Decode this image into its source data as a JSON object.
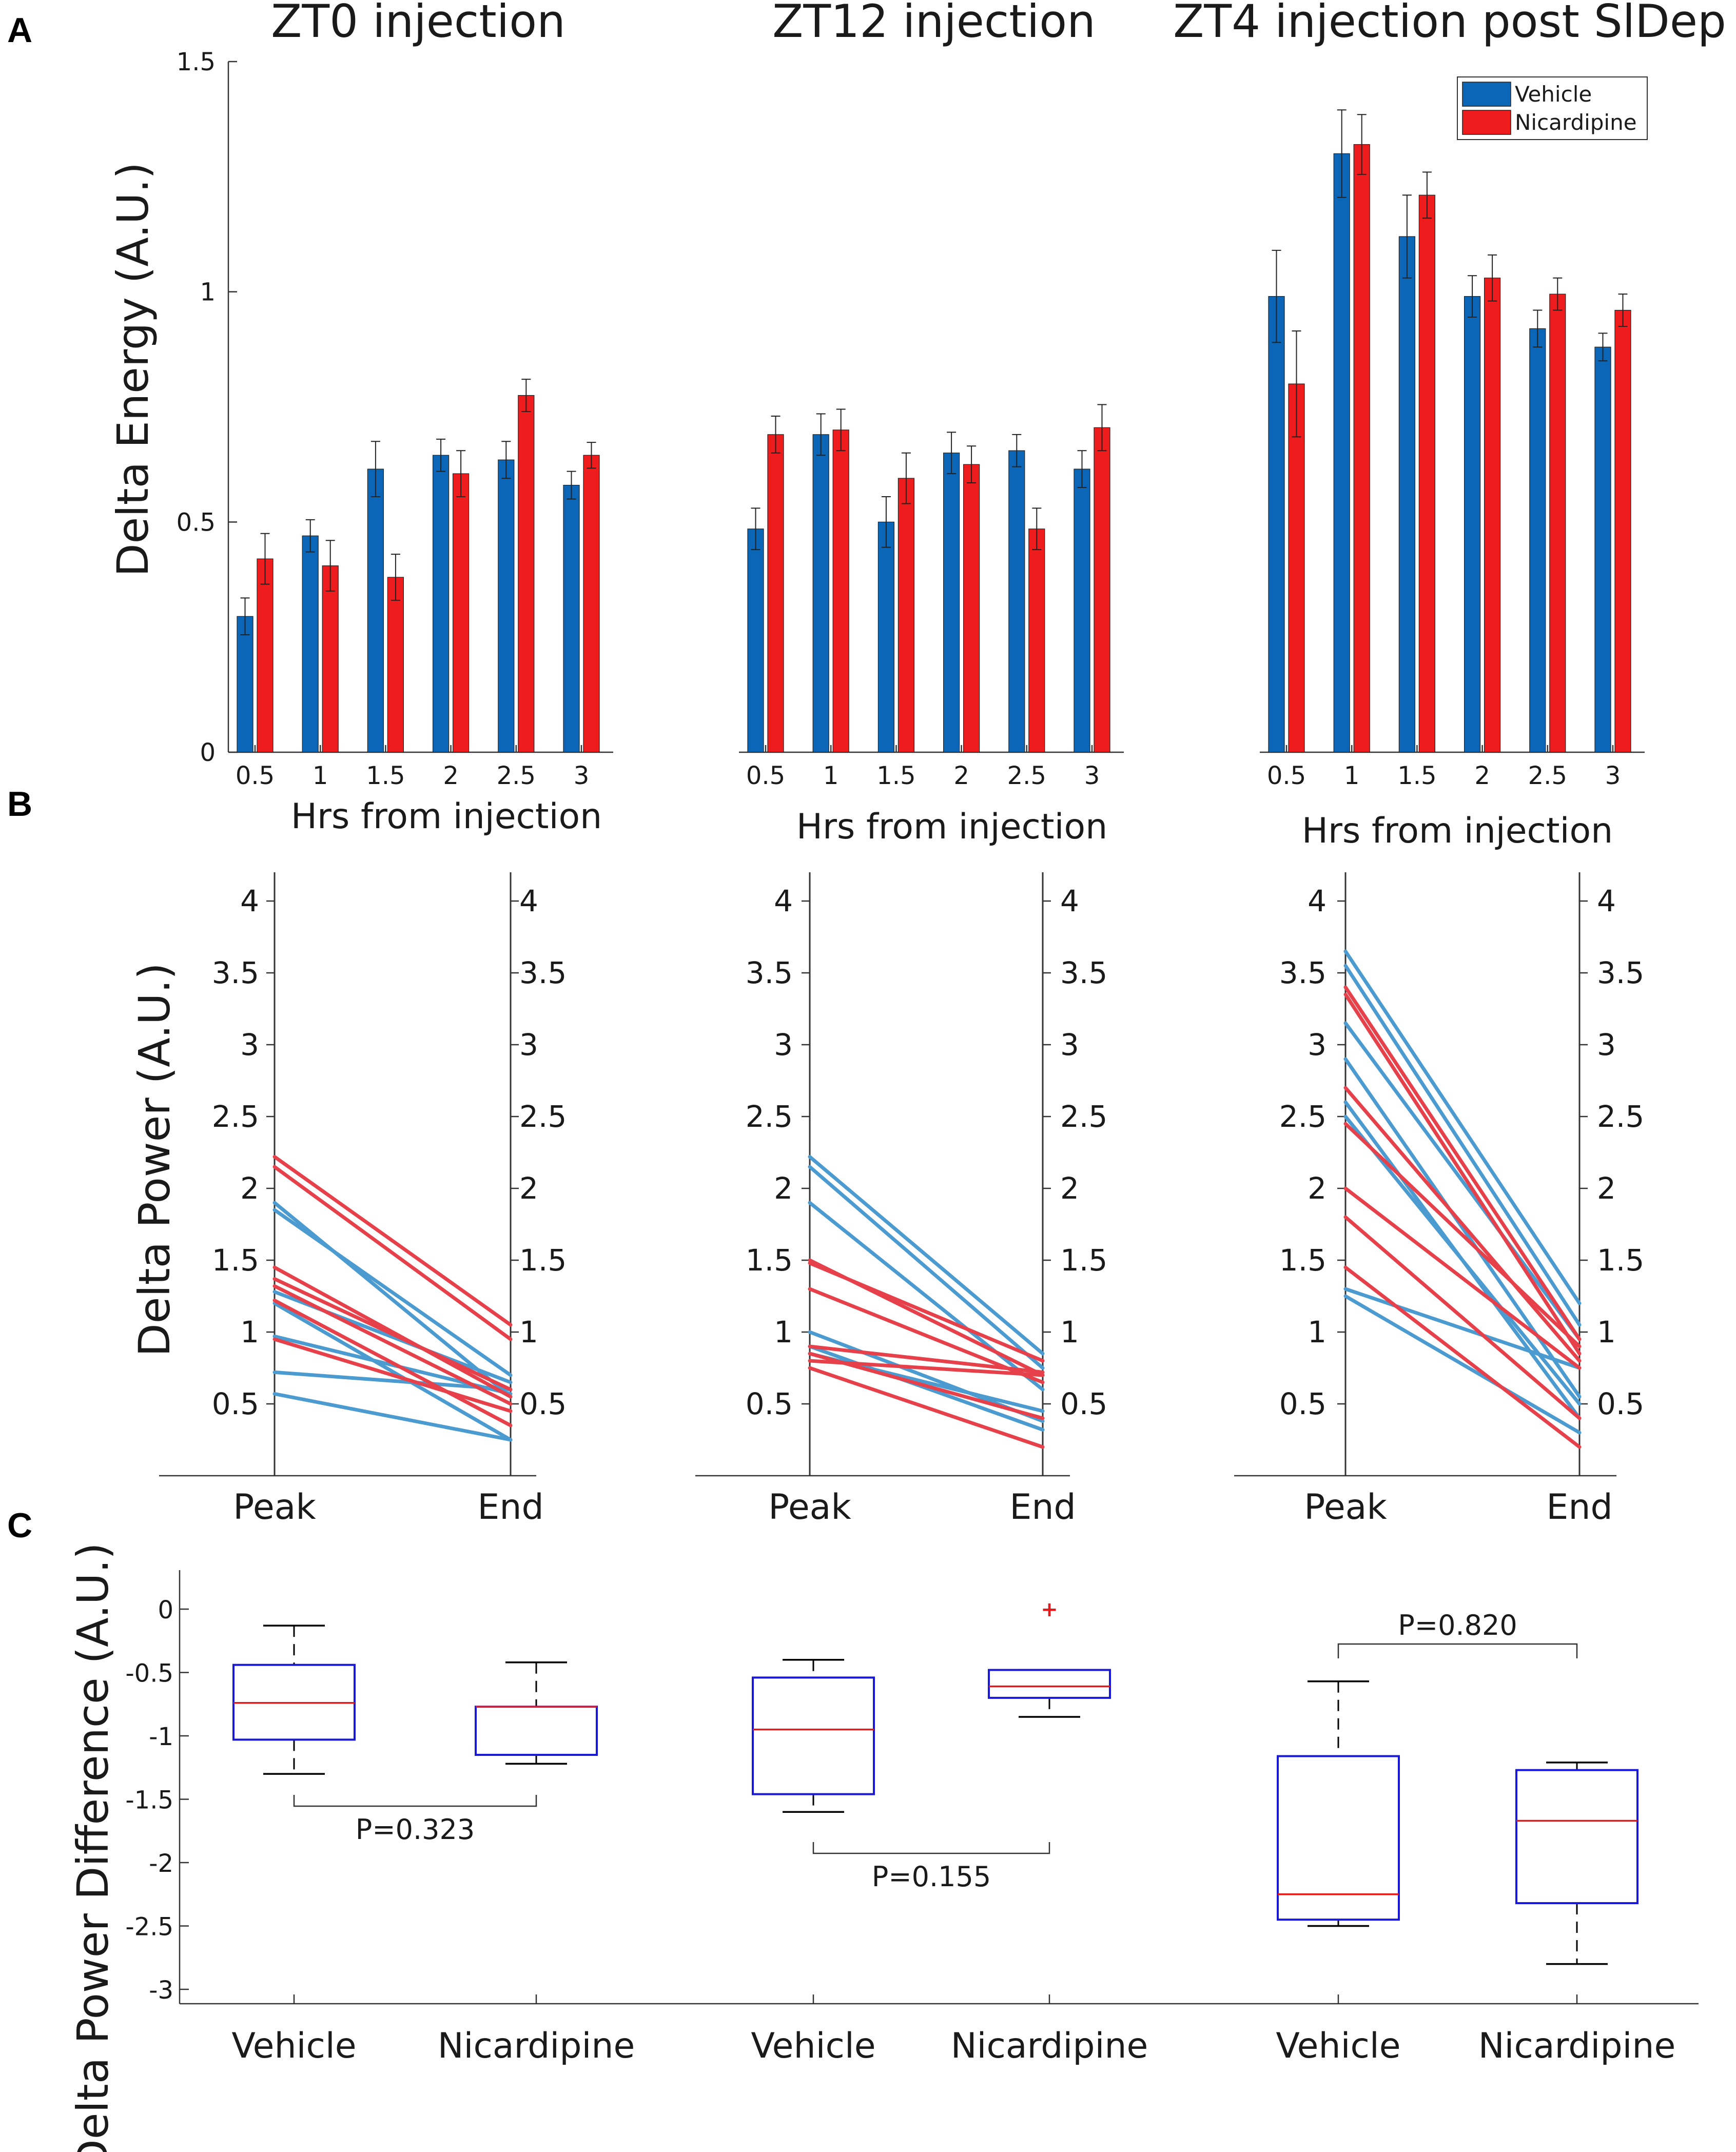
{
  "figure": {
    "panels": [
      "A",
      "B",
      "C"
    ]
  },
  "colors": {
    "vehicle": "#0B66B8",
    "nicardipine": "#EE1C1C",
    "vehicle_line": "#4C9BD0",
    "nicardipine_line": "#E6414A",
    "box": "#1818D6",
    "median": "#E31A1C",
    "axis": "#333333"
  },
  "chart_data": [
    {
      "panel": "A",
      "type": "bar",
      "ylabel": "Delta Energy (A.U.)",
      "ylim": [
        0,
        1.5
      ],
      "yticks": [
        "0",
        "0.5",
        "1",
        "1.5"
      ],
      "legend": {
        "position": "top-right",
        "entries": [
          "Vehicle",
          "Nicardipine"
        ]
      },
      "categories": [
        "0.5",
        "1",
        "1.5",
        "2",
        "2.5",
        "3"
      ],
      "subplots": [
        {
          "title": "ZT0 injection",
          "xlabel": "Hrs from injection",
          "series": [
            {
              "name": "Vehicle",
              "values": [
                0.295,
                0.47,
                0.615,
                0.645,
                0.635,
                0.58
              ],
              "errors": [
                0.04,
                0.035,
                0.06,
                0.035,
                0.04,
                0.03
              ]
            },
            {
              "name": "Nicardipine",
              "values": [
                0.42,
                0.405,
                0.38,
                0.605,
                0.775,
                0.645
              ],
              "errors": [
                0.055,
                0.055,
                0.05,
                0.05,
                0.035,
                0.028
              ]
            }
          ]
        },
        {
          "title": "ZT12 injection",
          "xlabel": "Hrs from injection",
          "series": [
            {
              "name": "Vehicle",
              "values": [
                0.485,
                0.69,
                0.5,
                0.65,
                0.655,
                0.615
              ],
              "errors": [
                0.045,
                0.045,
                0.055,
                0.045,
                0.035,
                0.04
              ]
            },
            {
              "name": "Nicardipine",
              "values": [
                0.69,
                0.7,
                0.595,
                0.625,
                0.485,
                0.705
              ],
              "errors": [
                0.04,
                0.045,
                0.055,
                0.04,
                0.045,
                0.05
              ]
            }
          ]
        },
        {
          "title": "ZT4 injection post SlDep",
          "xlabel": "Hrs from injection",
          "series": [
            {
              "name": "Vehicle",
              "values": [
                0.99,
                1.3,
                1.12,
                0.99,
                0.92,
                0.88
              ],
              "errors": [
                0.1,
                0.095,
                0.09,
                0.045,
                0.04,
                0.03
              ]
            },
            {
              "name": "Nicardipine",
              "values": [
                0.8,
                1.32,
                1.21,
                1.03,
                0.995,
                0.96
              ],
              "errors": [
                0.115,
                0.065,
                0.05,
                0.05,
                0.035,
                0.035
              ]
            }
          ]
        }
      ]
    },
    {
      "panel": "B",
      "type": "line",
      "ylabel": "Delta Power (A.U.)",
      "ylim": [
        0,
        4.2
      ],
      "yticks": [
        "0.5",
        "1",
        "1.5",
        "2",
        "2.5",
        "3",
        "3.5",
        "4"
      ],
      "categories": [
        "Peak",
        "End"
      ],
      "subplots": [
        {
          "vehicle": [
            [
              1.9,
              0.55
            ],
            [
              1.85,
              0.7
            ],
            [
              1.28,
              0.65
            ],
            [
              1.2,
              0.25
            ],
            [
              0.97,
              0.57
            ],
            [
              0.72,
              0.6
            ],
            [
              0.57,
              0.25
            ]
          ],
          "nicardipine": [
            [
              2.22,
              1.05
            ],
            [
              2.15,
              0.95
            ],
            [
              1.45,
              0.55
            ],
            [
              1.37,
              0.6
            ],
            [
              1.32,
              0.5
            ],
            [
              1.22,
              0.35
            ],
            [
              0.95,
              0.45
            ]
          ]
        },
        {
          "vehicle": [
            [
              2.22,
              0.85
            ],
            [
              2.15,
              0.75
            ],
            [
              1.9,
              0.6
            ],
            [
              1.0,
              0.38
            ],
            [
              0.9,
              0.32
            ],
            [
              0.85,
              0.45
            ]
          ],
          "nicardipine": [
            [
              1.5,
              0.7
            ],
            [
              1.48,
              0.8
            ],
            [
              1.3,
              0.65
            ],
            [
              0.9,
              0.72
            ],
            [
              0.85,
              0.4
            ],
            [
              0.8,
              0.7
            ],
            [
              0.75,
              0.2
            ]
          ]
        },
        {
          "vehicle": [
            [
              3.65,
              1.2
            ],
            [
              3.55,
              1.05
            ],
            [
              3.15,
              0.95
            ],
            [
              2.9,
              0.55
            ],
            [
              2.6,
              0.4
            ],
            [
              2.5,
              0.5
            ],
            [
              1.3,
              0.75
            ],
            [
              1.25,
              0.3
            ]
          ],
          "nicardipine": [
            [
              3.4,
              0.95
            ],
            [
              3.35,
              0.85
            ],
            [
              2.7,
              0.8
            ],
            [
              2.45,
              0.9
            ],
            [
              2.0,
              0.75
            ],
            [
              1.8,
              0.4
            ],
            [
              1.45,
              0.2
            ]
          ]
        }
      ]
    },
    {
      "panel": "C",
      "type": "box",
      "ylabel": "Delta Power Difference (A.U.)",
      "ylim": [
        -3.1,
        0.1
      ],
      "yticks": [
        "0",
        "-0.5",
        "-1",
        "-1.5",
        "-2",
        "-2.5",
        "-3"
      ],
      "categories": [
        "Vehicle",
        "Nicardipine",
        "Vehicle",
        "Nicardipine",
        "Vehicle",
        "Nicardipine"
      ],
      "boxes": [
        {
          "group": "Vehicle",
          "whisker_low": -1.3,
          "q1": -1.03,
          "median": -0.74,
          "q3": -0.44,
          "whisker_high": -0.13,
          "outliers": []
        },
        {
          "group": "Nicardipine",
          "whisker_low": -1.22,
          "q1": -1.15,
          "median": -0.77,
          "q3": -0.77,
          "whisker_high": -0.42,
          "outliers": []
        },
        {
          "group": "Vehicle",
          "whisker_low": -1.6,
          "q1": -1.46,
          "median": -0.95,
          "q3": -0.54,
          "whisker_high": -0.4,
          "outliers": []
        },
        {
          "group": "Nicardipine",
          "whisker_low": -0.85,
          "q1": -0.7,
          "median": -0.61,
          "q3": -0.48,
          "whisker_high": -0.48,
          "outliers": [
            0.0
          ]
        },
        {
          "group": "Vehicle",
          "whisker_low": -2.5,
          "q1": -2.45,
          "median": -2.25,
          "q3": -1.16,
          "whisker_high": -0.57,
          "outliers": []
        },
        {
          "group": "Nicardipine",
          "whisker_low": -2.8,
          "q1": -2.32,
          "median": -1.67,
          "q3": -1.27,
          "whisker_high": -1.21,
          "outliers": []
        }
      ],
      "comparisons": [
        {
          "pair": [
            0,
            1
          ],
          "label": "P=0.323",
          "side": "below"
        },
        {
          "pair": [
            2,
            3
          ],
          "label": "P=0.155",
          "side": "below"
        },
        {
          "pair": [
            4,
            5
          ],
          "label": "P=0.820",
          "side": "above"
        }
      ]
    }
  ]
}
